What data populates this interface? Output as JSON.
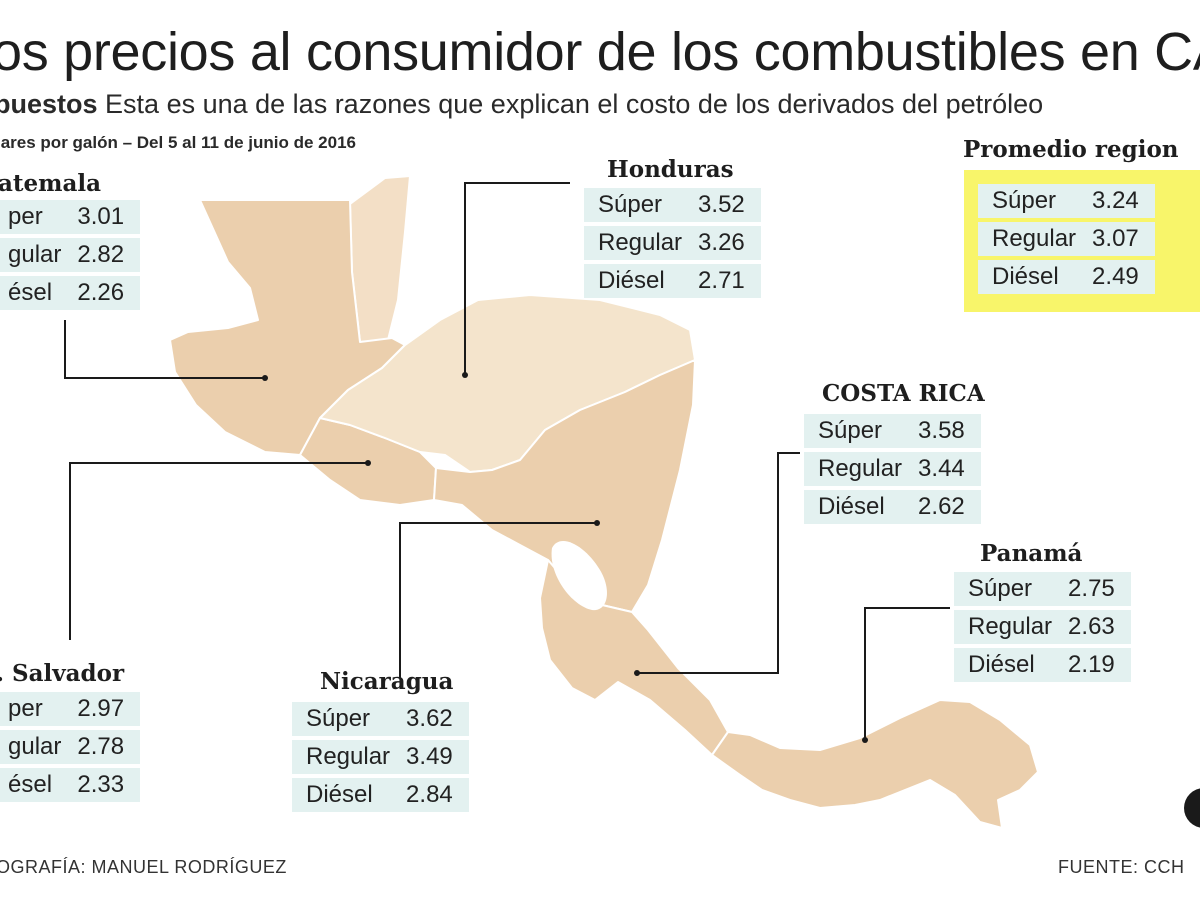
{
  "header": {
    "title": "os precios al consumidor de los combustibles en CA",
    "subtitle_lead": "puestos",
    "subtitle_text": "Esta es una de las razones que explican el costo de los derivados del petróleo",
    "units": "lares por galón – Del 5 al 11 de junio de 2016"
  },
  "countries": {
    "guatemala": {
      "name": "atemala",
      "rows": [
        {
          "label": "per",
          "value": "3.01"
        },
        {
          "label": "gular",
          "value": "2.82"
        },
        {
          "label": "ésel",
          "value": "2.26"
        }
      ]
    },
    "honduras": {
      "name": "Honduras",
      "rows": [
        {
          "label": "Súper",
          "value": "3.52"
        },
        {
          "label": "Regular",
          "value": "3.26"
        },
        {
          "label": "Diésel",
          "value": "2.71"
        }
      ]
    },
    "promedio": {
      "name": "Promedio region",
      "rows": [
        {
          "label": "Súper",
          "value": "3.24"
        },
        {
          "label": "Regular",
          "value": "3.07"
        },
        {
          "label": "Diésel",
          "value": "2.49"
        }
      ]
    },
    "costa_rica": {
      "name": "COSTA RICA",
      "rows": [
        {
          "label": "Súper",
          "value": "3.58"
        },
        {
          "label": "Regular",
          "value": "3.44"
        },
        {
          "label": "Diésel",
          "value": "2.62"
        }
      ]
    },
    "panama": {
      "name": "Panamá",
      "rows": [
        {
          "label": "Súper",
          "value": "2.75"
        },
        {
          "label": "Regular",
          "value": "2.63"
        },
        {
          "label": "Diésel",
          "value": "2.19"
        }
      ]
    },
    "el_salvador": {
      "name": ". Salvador",
      "rows": [
        {
          "label": "per",
          "value": "2.97"
        },
        {
          "label": "gular",
          "value": "2.78"
        },
        {
          "label": "ésel",
          "value": "2.33"
        }
      ]
    },
    "nicaragua": {
      "name": "Nicaragua",
      "rows": [
        {
          "label": "Súper",
          "value": "3.62"
        },
        {
          "label": "Regular",
          "value": "3.49"
        },
        {
          "label": "Diésel",
          "value": "2.84"
        }
      ]
    }
  },
  "footer": {
    "credit": "OGRAFÍA: MANUEL RODRÍGUEZ",
    "source": "FUENTE: CCH"
  },
  "colors": {
    "land": "#ebcfad",
    "land_light": "#f4e4cc",
    "table_bg": "#e3f1f0",
    "highlight": "#f8f56a"
  }
}
